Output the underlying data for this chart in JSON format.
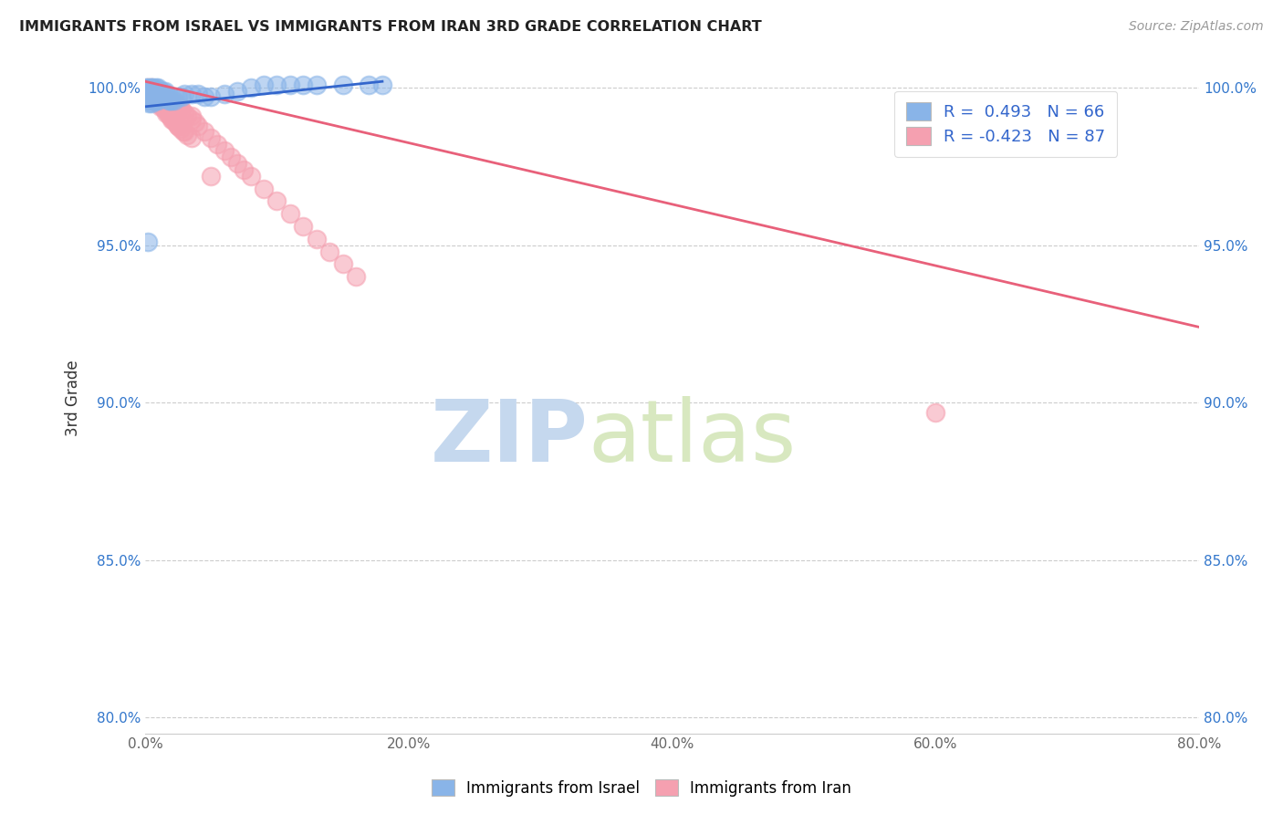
{
  "title": "IMMIGRANTS FROM ISRAEL VS IMMIGRANTS FROM IRAN 3RD GRADE CORRELATION CHART",
  "source": "Source: ZipAtlas.com",
  "ylabel": "3rd Grade",
  "xlim": [
    0.0,
    0.8
  ],
  "ylim": [
    0.795,
    1.008
  ],
  "xtick_labels": [
    "0.0%",
    "20.0%",
    "40.0%",
    "60.0%",
    "80.0%"
  ],
  "xtick_positions": [
    0.0,
    0.2,
    0.4,
    0.6,
    0.8
  ],
  "ytick_labels": [
    "80.0%",
    "85.0%",
    "90.0%",
    "95.0%",
    "100.0%"
  ],
  "ytick_positions": [
    0.8,
    0.85,
    0.9,
    0.95,
    1.0
  ],
  "israel_color": "#89b4e8",
  "iran_color": "#f5a0b0",
  "israel_line_color": "#3366cc",
  "iran_line_color": "#e8607a",
  "israel_R": 0.493,
  "israel_N": 66,
  "iran_R": -0.423,
  "iran_N": 87,
  "legend_label_israel": "Immigrants from Israel",
  "legend_label_iran": "Immigrants from Iran",
  "watermark_zip": "ZIP",
  "watermark_atlas": "atlas",
  "watermark_color": "#d0e4f7",
  "iran_line_x0": 0.0,
  "iran_line_y0": 1.002,
  "iran_line_x1": 0.8,
  "iran_line_y1": 0.924,
  "israel_line_x0": 0.0,
  "israel_line_y0": 0.994,
  "israel_line_x1": 0.18,
  "israel_line_y1": 1.002,
  "israel_x": [
    0.001,
    0.001,
    0.001,
    0.001,
    0.002,
    0.002,
    0.002,
    0.002,
    0.003,
    0.003,
    0.003,
    0.004,
    0.004,
    0.004,
    0.005,
    0.005,
    0.005,
    0.005,
    0.006,
    0.006,
    0.006,
    0.007,
    0.007,
    0.007,
    0.008,
    0.008,
    0.008,
    0.009,
    0.009,
    0.01,
    0.01,
    0.01,
    0.011,
    0.011,
    0.012,
    0.012,
    0.013,
    0.013,
    0.014,
    0.015,
    0.015,
    0.016,
    0.017,
    0.018,
    0.019,
    0.02,
    0.022,
    0.025,
    0.028,
    0.03,
    0.035,
    0.04,
    0.045,
    0.05,
    0.06,
    0.07,
    0.08,
    0.09,
    0.1,
    0.11,
    0.12,
    0.13,
    0.15,
    0.17,
    0.18,
    0.002
  ],
  "israel_y": [
    0.998,
    0.997,
    0.999,
    1.0,
    0.996,
    0.998,
    0.999,
    1.0,
    0.995,
    0.997,
    0.999,
    0.996,
    0.998,
    1.0,
    0.995,
    0.997,
    0.999,
    1.0,
    0.996,
    0.998,
    1.0,
    0.996,
    0.998,
    0.999,
    0.996,
    0.998,
    1.0,
    0.997,
    0.999,
    0.996,
    0.998,
    1.0,
    0.997,
    0.999,
    0.997,
    0.999,
    0.997,
    0.999,
    0.998,
    0.997,
    0.999,
    0.998,
    0.997,
    0.996,
    0.996,
    0.996,
    0.996,
    0.997,
    0.997,
    0.998,
    0.998,
    0.998,
    0.997,
    0.997,
    0.998,
    0.999,
    1.0,
    1.001,
    1.001,
    1.001,
    1.001,
    1.001,
    1.001,
    1.001,
    1.001,
    0.951
  ],
  "iran_x": [
    0.002,
    0.003,
    0.004,
    0.005,
    0.005,
    0.006,
    0.007,
    0.008,
    0.009,
    0.01,
    0.01,
    0.011,
    0.012,
    0.013,
    0.014,
    0.015,
    0.016,
    0.017,
    0.018,
    0.019,
    0.02,
    0.021,
    0.022,
    0.023,
    0.024,
    0.025,
    0.026,
    0.028,
    0.03,
    0.032,
    0.035,
    0.038,
    0.04,
    0.045,
    0.05,
    0.055,
    0.06,
    0.065,
    0.07,
    0.075,
    0.08,
    0.09,
    0.1,
    0.11,
    0.12,
    0.13,
    0.14,
    0.15,
    0.16,
    0.003,
    0.005,
    0.007,
    0.009,
    0.011,
    0.013,
    0.015,
    0.017,
    0.019,
    0.021,
    0.023,
    0.025,
    0.027,
    0.029,
    0.032,
    0.035,
    0.004,
    0.006,
    0.008,
    0.012,
    0.016,
    0.02,
    0.025,
    0.03,
    0.002,
    0.004,
    0.006,
    0.01,
    0.015,
    0.02,
    0.6,
    0.002,
    0.008,
    0.012,
    0.018,
    0.025,
    0.035,
    0.05
  ],
  "iran_y": [
    1.0,
    0.999,
    0.999,
    1.0,
    0.998,
    0.999,
    0.998,
    0.999,
    0.998,
    0.999,
    0.997,
    0.998,
    0.998,
    0.997,
    0.997,
    0.997,
    0.997,
    0.996,
    0.996,
    0.996,
    0.995,
    0.995,
    0.995,
    0.995,
    0.994,
    0.994,
    0.994,
    0.993,
    0.992,
    0.991,
    0.99,
    0.989,
    0.988,
    0.986,
    0.984,
    0.982,
    0.98,
    0.978,
    0.976,
    0.974,
    0.972,
    0.968,
    0.964,
    0.96,
    0.956,
    0.952,
    0.948,
    0.944,
    0.94,
    0.999,
    0.998,
    0.997,
    0.996,
    0.995,
    0.994,
    0.993,
    0.992,
    0.991,
    0.99,
    0.989,
    0.988,
    0.987,
    0.986,
    0.985,
    0.984,
    0.998,
    0.997,
    0.996,
    0.994,
    0.992,
    0.99,
    0.988,
    0.986,
    0.999,
    0.998,
    0.997,
    0.995,
    0.993,
    0.991,
    0.897,
    0.998,
    0.997,
    0.996,
    0.995,
    0.993,
    0.991,
    0.972
  ]
}
